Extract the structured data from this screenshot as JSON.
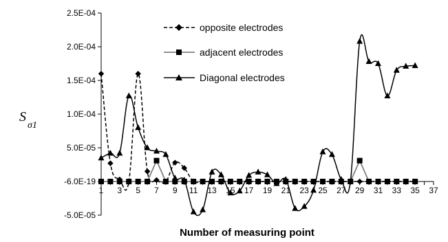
{
  "chart_data": {
    "type": "line",
    "title": "",
    "xlabel": "Number of measuring point",
    "ylabel": "S",
    "ylabel_sub": "σ1",
    "xlim": [
      1,
      37
    ],
    "ylim": [
      -5e-05,
      0.00025
    ],
    "x_ticks": [
      "1",
      "3",
      "5",
      "7",
      "9",
      "11",
      "13",
      "15",
      "17",
      "19",
      "21",
      "23",
      "25",
      "27",
      "29",
      "31",
      "33",
      "35",
      "37"
    ],
    "y_ticks": [
      "2.5E-04",
      "2.0E-04",
      "1.5E-04",
      "1.0E-04",
      "5.0E-05",
      "-6.0E-19",
      "-5.0E-05"
    ],
    "grid": false,
    "legend_position": "top-center",
    "x": [
      1,
      2,
      3,
      4,
      5,
      6,
      7,
      8,
      9,
      10,
      11,
      12,
      13,
      14,
      15,
      16,
      17,
      18,
      19,
      20,
      21,
      22,
      23,
      24,
      25,
      26,
      27,
      28,
      29,
      30,
      31,
      32,
      33,
      34,
      35
    ],
    "series": [
      {
        "name": "opposite electrodes",
        "style": "dashed",
        "marker": "diamond",
        "color": "#000000",
        "values": [
          0.00016,
          2.7e-05,
          3e-06,
          0,
          0.00016,
          1.5e-05,
          2e-06,
          0,
          2.8e-05,
          2e-05,
          0,
          0,
          0,
          0,
          0,
          0,
          0,
          0,
          0,
          0,
          0,
          0,
          0,
          0,
          0,
          0,
          0,
          0,
          0,
          0,
          0,
          0,
          0,
          0,
          0
        ]
      },
      {
        "name": "adjacent electrodes",
        "style": "solid",
        "marker": "square",
        "color": "#808080",
        "values": [
          0,
          0,
          0,
          0,
          0,
          0,
          3.1e-05,
          0,
          0,
          0,
          0,
          0,
          0,
          0,
          0,
          0,
          0,
          0,
          0,
          0,
          0,
          0,
          0,
          0,
          0,
          0,
          0,
          0,
          3.1e-05,
          0,
          0,
          0,
          0,
          0,
          0
        ]
      },
      {
        "name": "Diagonal electrodes",
        "style": "solid",
        "marker": "triangle",
        "color": "#000000",
        "values": [
          3.5e-05,
          4.2e-05,
          4.2e-05,
          0.000127,
          8e-05,
          5e-05,
          4.5e-05,
          4e-05,
          5e-06,
          2e-06,
          -4.5e-05,
          -4.2e-05,
          1.4e-05,
          1e-05,
          -1.7e-05,
          -1.4e-05,
          9e-06,
          1.4e-05,
          1e-05,
          -3e-06,
          3e-06,
          -4e-05,
          -3.7e-05,
          -1.3e-05,
          4.4e-05,
          4e-05,
          3e-06,
          0,
          0.000208,
          0.000178,
          0.000175,
          0.000127,
          0.000165,
          0.000171,
          0.000172
        ]
      }
    ]
  }
}
